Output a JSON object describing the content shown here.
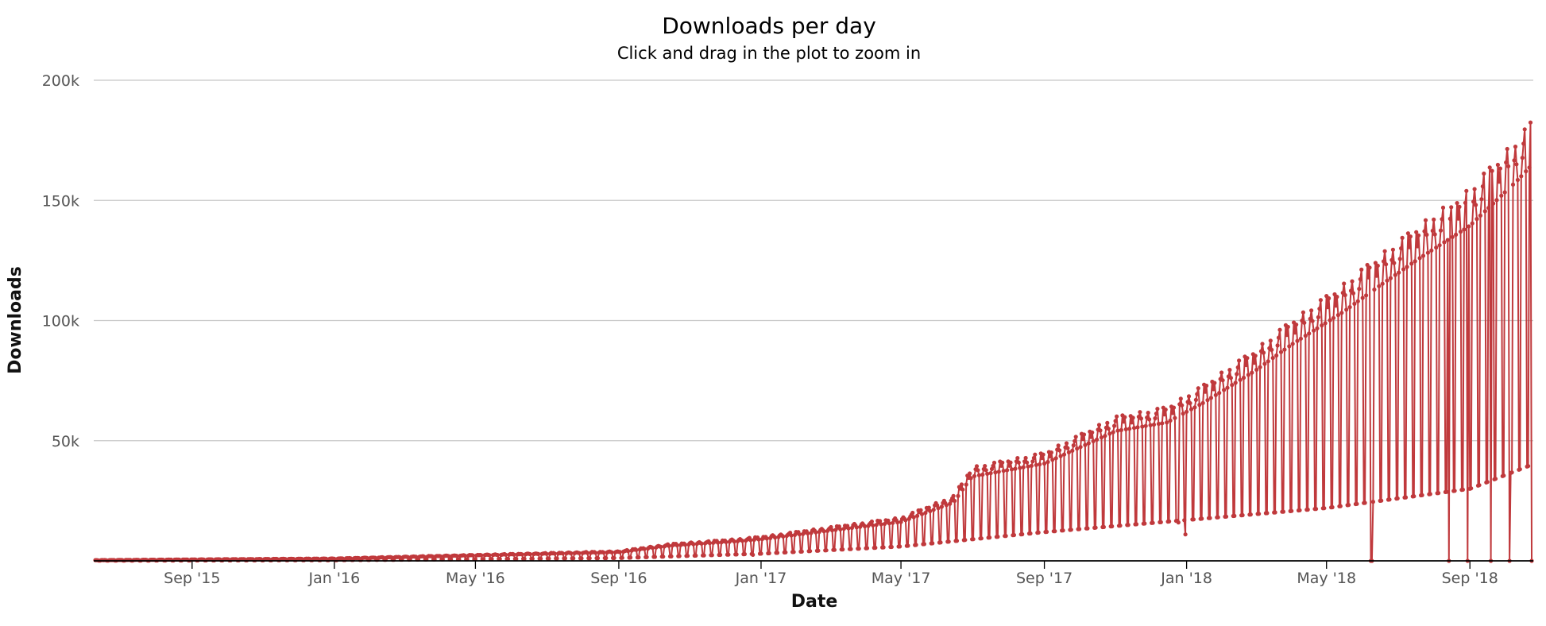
{
  "chart_data": {
    "type": "line",
    "title": "Downloads per day",
    "subtitle": "Click and drag in the plot to zoom in",
    "xlabel": "Date",
    "ylabel": "Downloads",
    "x_range": [
      "2015-06-10",
      "2018-10-24"
    ],
    "ylim": [
      0,
      200000
    ],
    "y_ticks": [
      {
        "value": 50000,
        "label": "50k"
      },
      {
        "value": 100000,
        "label": "100k"
      },
      {
        "value": 150000,
        "label": "150k"
      },
      {
        "value": 200000,
        "label": "200k"
      }
    ],
    "x_ticks": [
      {
        "date": "2015-09-01",
        "label": "Sep '15"
      },
      {
        "date": "2016-01-01",
        "label": "Jan '16"
      },
      {
        "date": "2016-05-01",
        "label": "May '16"
      },
      {
        "date": "2016-09-01",
        "label": "Sep '16"
      },
      {
        "date": "2017-01-01",
        "label": "Jan '17"
      },
      {
        "date": "2017-05-01",
        "label": "May '17"
      },
      {
        "date": "2017-09-01",
        "label": "Sep '17"
      },
      {
        "date": "2018-01-01",
        "label": "Jan '18"
      },
      {
        "date": "2018-05-01",
        "label": "May '18"
      },
      {
        "date": "2018-09-01",
        "label": "Sep '18"
      }
    ],
    "grid": true,
    "legend": "none",
    "series_color": "#c0393c",
    "series": [
      {
        "weekday_envelope": [
          {
            "date": "2015-06-10",
            "value": 300
          },
          {
            "date": "2015-09-01",
            "value": 600
          },
          {
            "date": "2016-01-01",
            "value": 1000
          },
          {
            "date": "2016-05-01",
            "value": 2500
          },
          {
            "date": "2016-09-01",
            "value": 4000
          },
          {
            "date": "2016-10-15",
            "value": 7000
          },
          {
            "date": "2016-12-10",
            "value": 9000
          },
          {
            "date": "2017-01-01",
            "value": 10000
          },
          {
            "date": "2017-03-01",
            "value": 14000
          },
          {
            "date": "2017-05-01",
            "value": 18000
          },
          {
            "date": "2017-06-15",
            "value": 27000
          },
          {
            "date": "2017-07-01",
            "value": 39000
          },
          {
            "date": "2017-09-01",
            "value": 45000
          },
          {
            "date": "2017-11-01",
            "value": 60000
          },
          {
            "date": "2017-12-15",
            "value": 64000
          },
          {
            "date": "2018-01-15",
            "value": 73000
          },
          {
            "date": "2018-03-01",
            "value": 88000
          },
          {
            "date": "2018-04-01",
            "value": 100000
          },
          {
            "date": "2018-05-15",
            "value": 115000
          },
          {
            "date": "2018-06-15",
            "value": 127000
          },
          {
            "date": "2018-07-20",
            "value": 140000
          },
          {
            "date": "2018-09-01",
            "value": 155000
          },
          {
            "date": "2018-10-10",
            "value": 175000
          },
          {
            "date": "2018-10-24",
            "value": 183000
          }
        ],
        "weekend_envelope": [
          {
            "date": "2015-06-10",
            "value": 100
          },
          {
            "date": "2016-01-01",
            "value": 300
          },
          {
            "date": "2016-05-01",
            "value": 700
          },
          {
            "date": "2016-09-01",
            "value": 1200
          },
          {
            "date": "2017-01-01",
            "value": 3000
          },
          {
            "date": "2017-05-01",
            "value": 6000
          },
          {
            "date": "2017-09-01",
            "value": 12000
          },
          {
            "date": "2018-01-01",
            "value": 17000
          },
          {
            "date": "2018-05-01",
            "value": 22000
          },
          {
            "date": "2018-09-01",
            "value": 30000
          },
          {
            "date": "2018-10-24",
            "value": 40000
          }
        ],
        "low_points": [
          {
            "date": "2016-12-25",
            "value": 2500
          },
          {
            "date": "2017-12-25",
            "value": 16000
          },
          {
            "date": "2017-12-31",
            "value": 11000
          },
          {
            "date": "2018-06-08",
            "value": 0
          },
          {
            "date": "2018-06-09",
            "value": 0
          },
          {
            "date": "2018-08-14",
            "value": 0
          },
          {
            "date": "2018-08-30",
            "value": 0
          },
          {
            "date": "2018-09-19",
            "value": 0
          },
          {
            "date": "2018-10-05",
            "value": 0
          },
          {
            "date": "2018-10-24",
            "value": 0
          }
        ]
      }
    ]
  }
}
